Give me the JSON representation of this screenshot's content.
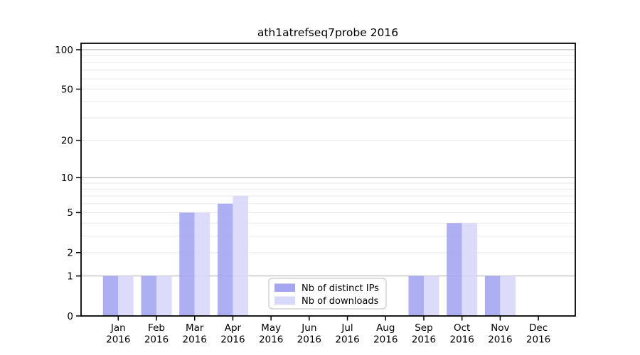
{
  "chart_data": {
    "type": "bar",
    "title": "ath1atrefseq7probe 2016",
    "categories": [
      "Jan 2016",
      "Feb 2016",
      "Mar 2016",
      "Apr 2016",
      "May 2016",
      "Jun 2016",
      "Jul 2016",
      "Aug 2016",
      "Sep 2016",
      "Oct 2016",
      "Nov 2016",
      "Dec 2016"
    ],
    "series": [
      {
        "name": "Nb of distinct IPs",
        "color": "#a5a5f2",
        "values": [
          1,
          1,
          5,
          6,
          0,
          0,
          0,
          0,
          1,
          4,
          1,
          0
        ]
      },
      {
        "name": "Nb of downloads",
        "color": "#d8d8fa",
        "values": [
          1,
          1,
          5,
          7,
          0,
          0,
          0,
          0,
          1,
          4,
          1,
          0
        ]
      }
    ],
    "yscale": "log1p",
    "ylim": [
      0,
      111
    ],
    "yticks": [
      0,
      1,
      2,
      5,
      10,
      20,
      50,
      100
    ],
    "major_gridlines": [
      1,
      10,
      100
    ],
    "minor_gridlines": [
      2,
      3,
      4,
      5,
      6,
      7,
      8,
      9,
      20,
      30,
      40,
      50,
      60,
      70,
      80,
      90
    ],
    "grid": "on",
    "legend_position": "inside-bottom-center",
    "colors": {
      "major_grid": "#b9b9b9",
      "minor_grid": "#ececec",
      "spine": "#000000",
      "legend_border": "#c9c9c9",
      "legend_bg": "#ffffff"
    }
  }
}
